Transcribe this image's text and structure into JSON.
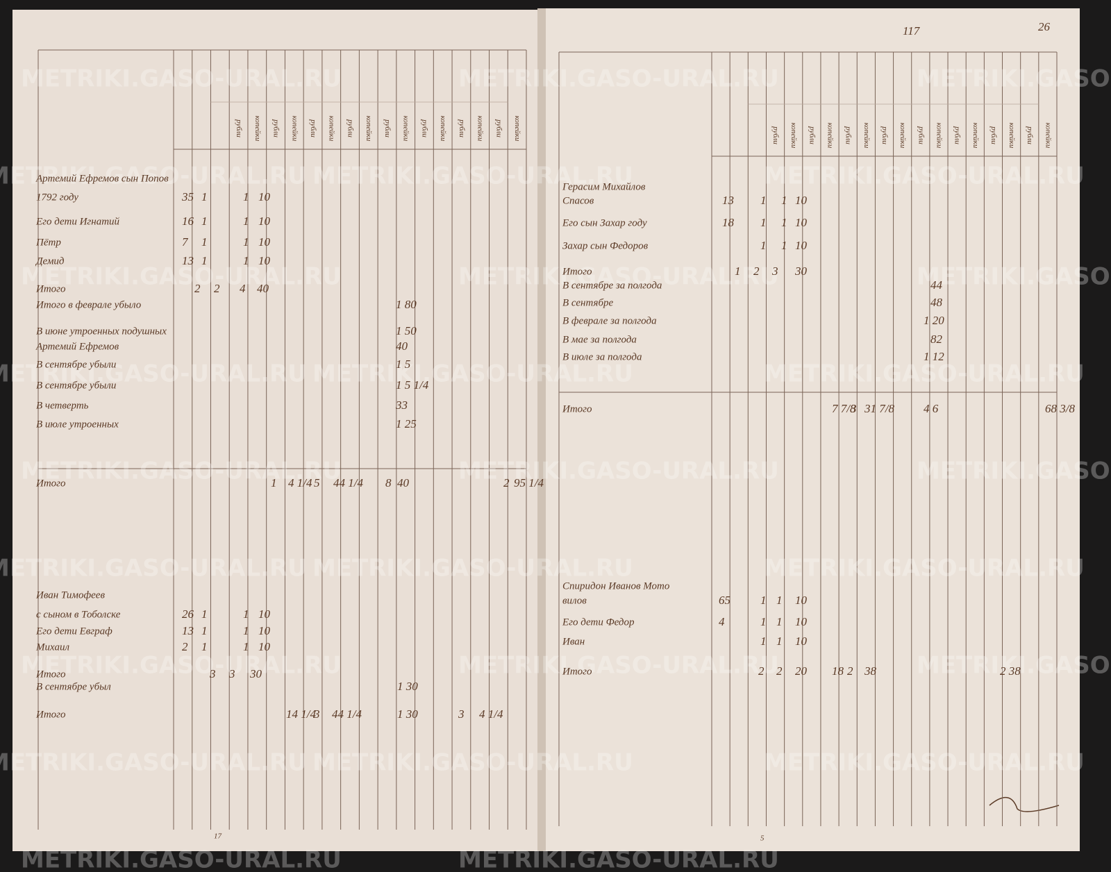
{
  "watermark": "METRIKI.GASO-URAL.RU",
  "page_numbers": {
    "folio": "117",
    "sheet": "26",
    "left_foot": "17",
    "right_foot": "5"
  },
  "header": {
    "sub": [
      "рубли",
      "копейки"
    ]
  },
  "left_page": {
    "rows": [
      {
        "label": "Артемий Ефремов сын Попов",
        "cells": []
      },
      {
        "label": "1792 году",
        "cells": [
          "35",
          "1",
          "1",
          "10"
        ]
      },
      {
        "label": "Его дети Игнатий",
        "cells": [
          "16",
          "1",
          "1",
          "10"
        ]
      },
      {
        "label": "Пётр",
        "cells": [
          "7",
          "1",
          "1",
          "10"
        ]
      },
      {
        "label": "Демид",
        "cells": [
          "13",
          "1",
          "1",
          "10"
        ]
      },
      {
        "label": "Итого",
        "cells": [
          "2",
          "2",
          "4",
          "40"
        ]
      },
      {
        "label": "Итого в феврале убыло",
        "cells": [
          "1 80"
        ]
      },
      {
        "label": "В июне утроенных подушных",
        "cells": [
          "1 50"
        ]
      },
      {
        "label": "Артемий Ефремов",
        "cells": [
          "40"
        ]
      },
      {
        "label": "В сентябре убыли",
        "cells": [
          "1 5"
        ]
      },
      {
        "label": "В сентябре убыли",
        "cells": [
          "1 5 1/4"
        ]
      },
      {
        "label": "В четверть",
        "cells": [
          "33"
        ]
      },
      {
        "label": "В июле утроенных",
        "cells": [
          "1 25"
        ]
      },
      {
        "label": "Итого",
        "cells": [
          "1",
          "4 1/4",
          "5",
          "44 1/4",
          "8",
          "40",
          "2",
          "95 1/4"
        ]
      },
      {
        "label": "Иван Тимофеев",
        "cells": []
      },
      {
        "label": "с сыном в Тоболске",
        "cells": [
          "26",
          "1",
          "1",
          "10"
        ]
      },
      {
        "label": "Его дети Евграф",
        "cells": [
          "13",
          "1",
          "1",
          "10"
        ]
      },
      {
        "label": "Михаил",
        "cells": [
          "2",
          "1",
          "1",
          "10"
        ]
      },
      {
        "label": "Итого",
        "cells": [
          "3",
          "3",
          "30"
        ]
      },
      {
        "label": "В сентябре убыл",
        "cells": [
          "1 30"
        ]
      },
      {
        "label": "Итого",
        "cells": [
          "14 1/4",
          "3",
          "44 1/4",
          "1 30",
          "3",
          "4 1/4"
        ]
      }
    ]
  },
  "right_page": {
    "rows": [
      {
        "label": "Герасим Михайлов",
        "cells": []
      },
      {
        "label": "Спасов",
        "cells": [
          "13",
          "1",
          "1",
          "10"
        ]
      },
      {
        "label": "Его сын Захар году",
        "cells": [
          "18",
          "1",
          "1",
          "10"
        ]
      },
      {
        "label": "Захар сын Федоров",
        "cells": [
          "1",
          "1",
          "10"
        ]
      },
      {
        "label": "Итого",
        "cells": [
          "1",
          "2",
          "3",
          "30"
        ]
      },
      {
        "label": "В сентябре за полгода",
        "cells": [
          "44"
        ]
      },
      {
        "label": "В сентябре",
        "cells": [
          "48"
        ]
      },
      {
        "label": "В феврале за полгода",
        "cells": [
          "1 20"
        ]
      },
      {
        "label": "В мае за полгода",
        "cells": [
          "82"
        ]
      },
      {
        "label": "В июле за полгода",
        "cells": [
          "1 12"
        ]
      },
      {
        "label": "Итого",
        "cells": [
          "7 7/8",
          "3",
          "31 7/8",
          "4 6",
          "68 3/8"
        ]
      },
      {
        "label": "Спиридон Иванов Мото",
        "cells": []
      },
      {
        "label": "вилов",
        "cells": [
          "65",
          "1",
          "1",
          "10"
        ]
      },
      {
        "label": "Его дети Федор",
        "cells": [
          "4",
          "1",
          "1",
          "10"
        ]
      },
      {
        "label": "Иван",
        "cells": [
          "1",
          "1",
          "10"
        ]
      },
      {
        "label": "Итого",
        "cells": [
          "2",
          "2",
          "20",
          "18",
          "2",
          "38",
          "2 38"
        ]
      }
    ]
  }
}
